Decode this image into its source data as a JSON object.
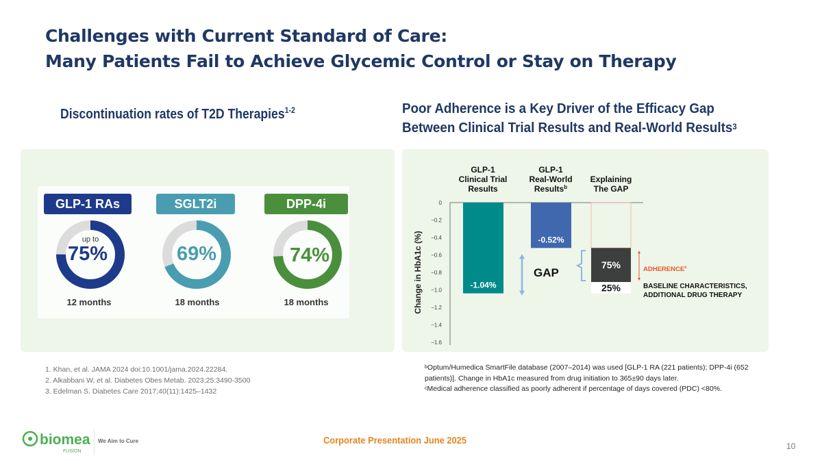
{
  "title": {
    "line1": "Challenges with Current Standard of Care:",
    "line2": "Many Patients Fail to Achieve Glycemic Control or Stay on Therapy"
  },
  "left_section": {
    "heading": "Discontinuation rates of T2D Therapies",
    "heading_sup": "1-2",
    "therapies": [
      {
        "label": "GLP-1 RAs",
        "prefix": "up to",
        "value_label": "75%",
        "value_pct": 75,
        "period": "12 months",
        "color": "#1e3a8a"
      },
      {
        "label": "SGLT2i",
        "prefix": "",
        "value_label": "69%",
        "value_pct": 69,
        "period": "18 months",
        "color": "#4a9db0"
      },
      {
        "label": "DPP-4i",
        "prefix": "",
        "value_label": "74%",
        "value_pct": 74,
        "period": "18 months",
        "color": "#4a8f3c"
      }
    ],
    "track_color": "#dcdcdc"
  },
  "right_section": {
    "heading_line1": "Poor Adherence is a Key Driver of the Efficacy Gap",
    "heading_line2": "Between Clinical Trial Results and Real-World Results",
    "heading_sup": "3"
  },
  "chart_data": {
    "type": "bar",
    "title": "",
    "ylabel": "Change in HbA1c (%)",
    "xlabel": "",
    "ylim": [
      -1.6,
      0
    ],
    "yticks": [
      "0",
      "−0.2",
      "−0.4",
      "−0.6",
      "−0.8",
      "−1.0",
      "−1.2",
      "−1.4",
      "−1.6"
    ],
    "ytick_values": [
      0,
      -0.2,
      -0.4,
      -0.6,
      -0.8,
      -1.0,
      -1.2,
      -1.4,
      -1.6
    ],
    "grid": false,
    "categories": [
      {
        "lines": [
          "GLP-1",
          "Clinical Trial",
          "Results"
        ],
        "sup": ""
      },
      {
        "lines": [
          "GLP-1",
          "Real-World",
          "Results"
        ],
        "sup": "b"
      },
      {
        "lines": [
          "Explaining",
          "The GAP"
        ],
        "sup": ""
      }
    ],
    "bars": [
      {
        "name": "GLP-1 Clinical Trial Results",
        "value": -1.04,
        "label": "-1.04%",
        "color": "#008b8b"
      },
      {
        "name": "GLP-1 Real-World Results",
        "value": -0.52,
        "label": "-0.52%",
        "color": "#3f68ae"
      }
    ],
    "gap": {
      "label": "GAP",
      "from": -0.52,
      "to": -1.04,
      "arrow_color": "#8fb4e3",
      "segments": [
        {
          "name": "Adherence",
          "share_pct": 75,
          "label": "75%",
          "color": "#3d3f3e",
          "text_color": "#ffffff",
          "annotation": "ADHERENCE",
          "annotation_sup": "c",
          "annotation_color": "#e8572a"
        },
        {
          "name": "Baseline characteristics, additional drug therapy",
          "share_pct": 25,
          "label": "25%",
          "color": "#ffffff",
          "text_color": "#111111",
          "annotation_lines": [
            "BASELINE CHARACTERISTICS,",
            "ADDITIONAL DRUG THERAPY"
          ],
          "annotation_color": "#111111"
        }
      ],
      "outline_color": "#f0b49a"
    }
  },
  "references": [
    "1. Khan, et al. JAMA 2024 doi:10.1001/jama.2024.22284.",
    "2. Alkabbani W, et al. Diabetes Obes Metab. 2023;25:3490-3500",
    "3. Edelman S. Diabetes Care 2017;40(11):1425–1432"
  ],
  "notes": [
    {
      "sup": "b",
      "text": "Optum/Humedica SmartFile database (2007–2014) was used [GLP-1 RA (221 patients); DPP-4i (652 patients)]. Change in HbA1c measured from drug initiation to 365±90 days later."
    },
    {
      "sup": "c",
      "text": "Medical adherence classified as poorly adherent if percentage of days covered (PDC) <80%."
    }
  ],
  "footer": {
    "brand": "biomea",
    "brand_sub": "FUSION",
    "tagline": "We Aim to Cure",
    "center": "Corporate Presentation June 2025",
    "page": "10",
    "brand_color": "#4caf50"
  }
}
